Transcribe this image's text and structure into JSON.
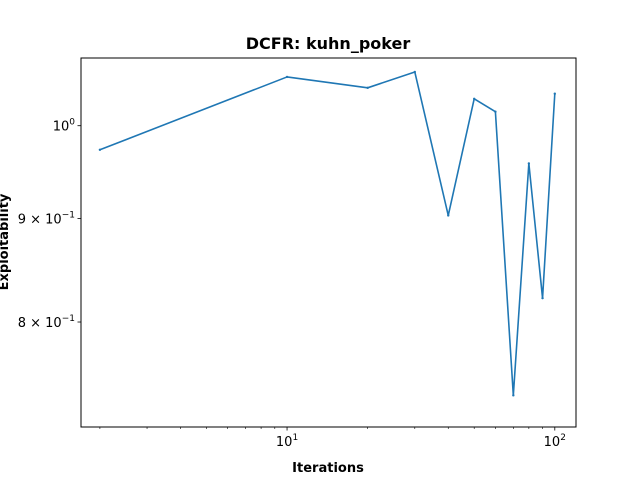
{
  "chart_data": {
    "type": "line",
    "title": "DCFR: kuhn_poker",
    "xlabel": "Iterations",
    "ylabel": "Exploitability",
    "xscale": "log",
    "yscale": "log",
    "xlim": [
      1.7,
      120
    ],
    "ylim": [
      0.71,
      1.08
    ],
    "grid": false,
    "x_ticks": [
      {
        "value": 10,
        "base": "10",
        "exp": "1"
      },
      {
        "value": 100,
        "base": "10",
        "exp": "2"
      }
    ],
    "y_ticks": [
      {
        "value": 1.0,
        "base": "10",
        "exp": "0",
        "mantissa": ""
      },
      {
        "value": 0.9,
        "base": "10",
        "exp": "−1",
        "mantissa": "9 × "
      },
      {
        "value": 0.8,
        "base": "10",
        "exp": "−1",
        "mantissa": "8 × "
      }
    ],
    "series": [
      {
        "color": "#1f77b4",
        "x": [
          2,
          10,
          20,
          30,
          40,
          50,
          60,
          70,
          80,
          90,
          100
        ],
        "y": [
          0.973,
          1.057,
          1.044,
          1.063,
          0.903,
          1.031,
          1.016,
          0.736,
          0.958,
          0.822,
          1.037
        ]
      }
    ]
  }
}
